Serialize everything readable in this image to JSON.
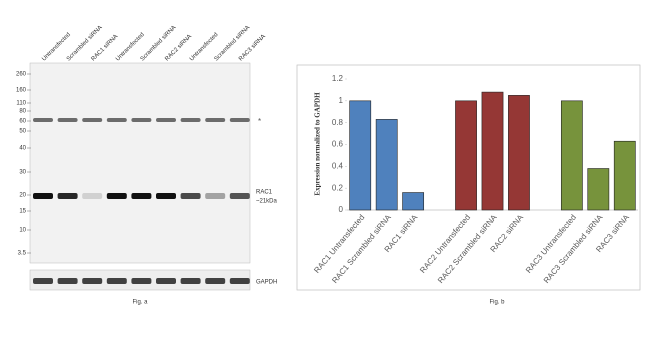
{
  "blot": {
    "lanes": [
      "Untransfected",
      "Scrambled siRNA",
      "RAC1 siRNA",
      "Untransfected",
      "Scrambled siRNA",
      "RAC2 siRNA",
      "Untransfected",
      "Scrambled siRNA",
      "RAC3 siRNA"
    ],
    "markers": [
      "260",
      "160",
      "110",
      "80",
      "60",
      "50",
      "40",
      "30",
      "20",
      "15",
      "10",
      "3.5"
    ],
    "asterisk": "*",
    "band_label": "RAC1",
    "band_size": "~21kDa",
    "loading_label": "GAPDH",
    "caption": "Fig. a"
  },
  "chart_data": {
    "type": "bar",
    "caption": "Fig. b",
    "y_label": "Expression normalized to GAPDH",
    "categories": [
      "RAC1 Untransfected",
      "RAC1 Scrambled siRNA",
      "RAC1 siRNA",
      null,
      "RAC2 Untransfected",
      "RAC2 Scrambled siRNA",
      "RAC2 siRNA",
      null,
      "RAC3 Untransfected",
      "RAC3 Scrambled siRNA",
      "RAC3 siRNA"
    ],
    "values": [
      1.0,
      0.83,
      0.16,
      null,
      1.0,
      1.08,
      1.05,
      null,
      1.0,
      0.38,
      0.63
    ],
    "colors": [
      "#4f81bd",
      "#4f81bd",
      "#4f81bd",
      null,
      "#953735",
      "#953735",
      "#953735",
      null,
      "#77933c",
      "#77933c",
      "#77933c"
    ],
    "ylim": [
      0,
      1.2
    ],
    "yticks": [
      0,
      0.2,
      0.4,
      0.6,
      0.8,
      1,
      1.2
    ],
    "grid": false
  }
}
